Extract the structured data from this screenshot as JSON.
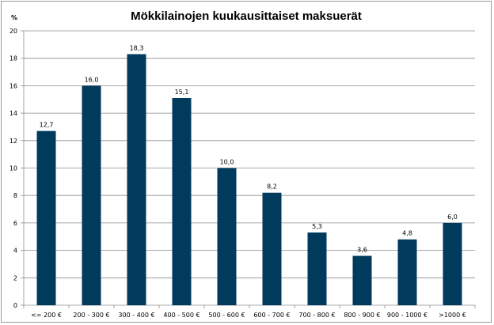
{
  "chart_data": {
    "type": "bar",
    "title": "Mökkilainojen kuukausittaiset maksuerät",
    "ylabel": "%",
    "xlabel": "",
    "ylim": [
      0,
      20
    ],
    "yticks": [
      0,
      2,
      4,
      6,
      8,
      10,
      12,
      14,
      16,
      18,
      20
    ],
    "grid": true,
    "legend": "none",
    "bar_color": "#003A5C",
    "categories": [
      "<= 200 €",
      "200 - 300 €",
      "300 - 400 €",
      "400 - 500 €",
      "500 - 600 €",
      "600 - 700 €",
      "700 - 800 €",
      "800 - 900 €",
      "900 - 1000 €",
      ">1000 €"
    ],
    "values": [
      12.7,
      16.0,
      18.3,
      15.1,
      10.0,
      8.2,
      5.3,
      3.6,
      4.8,
      6.0
    ],
    "value_labels": [
      "12,7",
      "16,0",
      "18,3",
      "15,1",
      "10,0",
      "8,2",
      "5,3",
      "3,6",
      "4,8",
      "6,0"
    ]
  }
}
